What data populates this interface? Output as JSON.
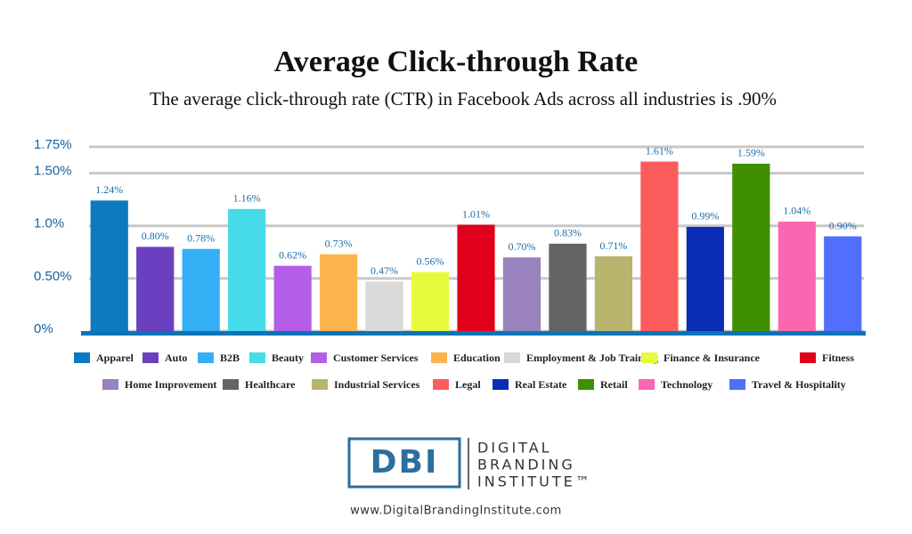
{
  "chart_data": {
    "type": "bar",
    "title": "Average Click-through Rate",
    "subtitle": "The average click-through rate (CTR) in Facebook Ads across all industries is .90%",
    "categories": [
      "Apparel",
      "Auto",
      "B2B",
      "Beauty",
      "Customer Services",
      "Education",
      "Employment & Job Training",
      "Finance & Insurance",
      "Fitness",
      "Home Improvement",
      "Healthcare",
      "Industrial Services",
      "Legal",
      "Real Estate",
      "Retail",
      "Technology",
      "Travel & Hospitality"
    ],
    "values": [
      1.24,
      0.8,
      0.78,
      1.16,
      0.62,
      0.73,
      0.47,
      0.56,
      1.01,
      0.7,
      0.83,
      0.71,
      1.61,
      0.99,
      1.59,
      1.04,
      0.9
    ],
    "value_labels": [
      "1.24%",
      "0.80%",
      "0.78%",
      "1.16%",
      "0.62%",
      "0.73%",
      "0.47%",
      "0.56%",
      "1.01%",
      "0.70%",
      "0.83%",
      "0.71%",
      "1.61%",
      "0.99%",
      "1.59%",
      "1.04%",
      "0.90%"
    ],
    "colors": [
      "#0b7bbd",
      "#6a3fc0",
      "#34aff5",
      "#45dbe8",
      "#b45ee8",
      "#fdb44e",
      "#d9d9d9",
      "#e8fa3c",
      "#e0001b",
      "#9a82be",
      "#646464",
      "#b9b46e",
      "#fd5c5c",
      "#0b2db5",
      "#3f8f00",
      "#fc66b0",
      "#4f6ffc"
    ],
    "ylim": [
      0,
      1.75
    ],
    "yticks": [
      {
        "value": 0,
        "label": "0%"
      },
      {
        "value": 0.5,
        "label": "0.50%"
      },
      {
        "value": 1.0,
        "label": "1.0%"
      },
      {
        "value": 1.5,
        "label": "1.50%"
      },
      {
        "value": 1.75,
        "label": "1.75%"
      }
    ],
    "grid": true,
    "legend": "bottom"
  },
  "branding": {
    "logo": "DBI",
    "name_lines": [
      "DIGITAL",
      "BRANDING",
      "INSTITUTE™"
    ],
    "url": "www.DigitalBrandingInstitute.com"
  }
}
